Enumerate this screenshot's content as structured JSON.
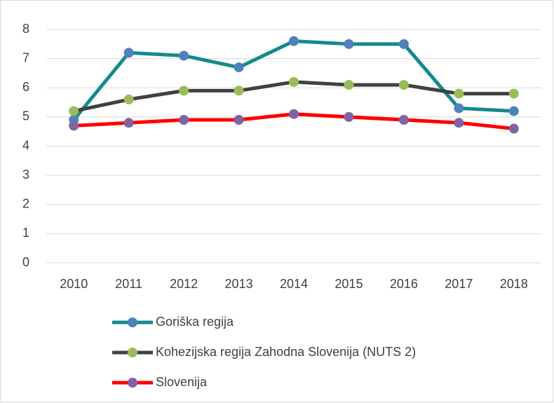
{
  "chart_data": {
    "type": "line",
    "categories": [
      "2010",
      "2011",
      "2012",
      "2013",
      "2014",
      "2015",
      "2016",
      "2017",
      "2018"
    ],
    "series": [
      {
        "name": "Goriška regija",
        "color": "#138a8a",
        "marker_color": "#4f81bd",
        "values": [
          4.9,
          7.2,
          7.1,
          6.7,
          7.6,
          7.5,
          7.5,
          5.3,
          5.2
        ]
      },
      {
        "name": "Kohezijska regija Zahodna Slovenija (NUTS 2)",
        "color": "#404040",
        "marker_color": "#9bbb59",
        "values": [
          5.2,
          5.6,
          5.9,
          5.9,
          6.2,
          6.1,
          6.1,
          5.8,
          5.8
        ]
      },
      {
        "name": "Slovenija",
        "color": "#ff0000",
        "marker_color": "#8064a2",
        "values": [
          4.7,
          4.8,
          4.9,
          4.9,
          5.1,
          5.0,
          4.9,
          4.8,
          4.6
        ]
      }
    ],
    "ylim": [
      0,
      8
    ],
    "yticks": [
      0,
      1,
      2,
      3,
      4,
      5,
      6,
      7,
      8
    ],
    "grid": true,
    "legend": "bottom"
  }
}
